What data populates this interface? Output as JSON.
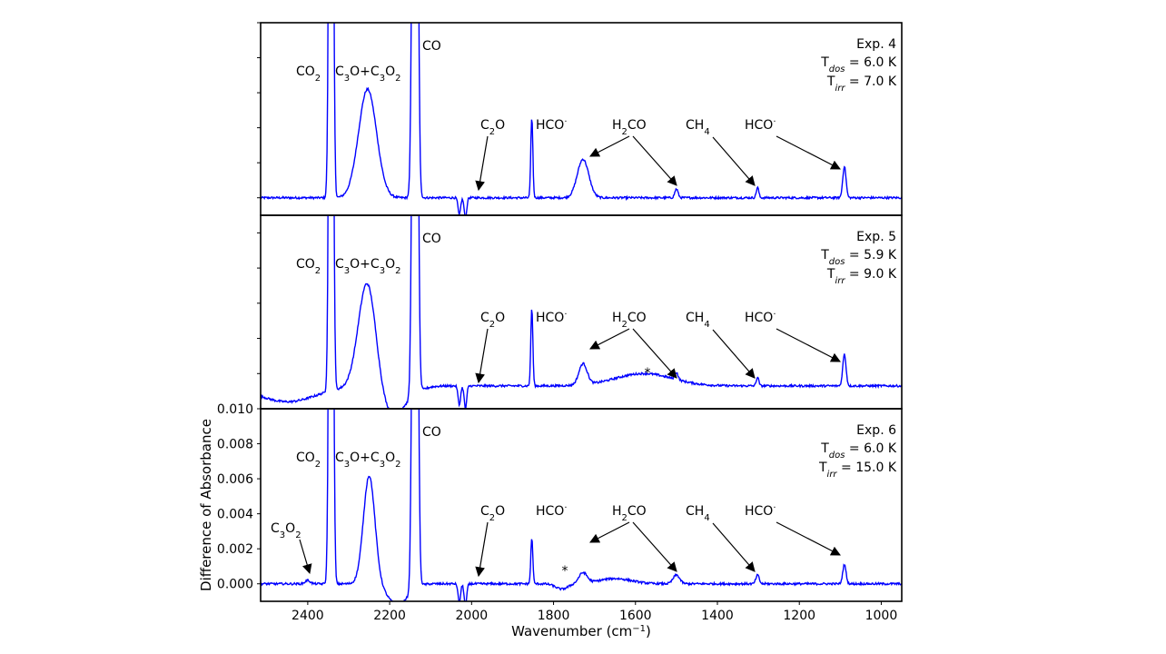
{
  "chart_data": {
    "type": "line",
    "xlabel": "Wavenumber (cm",
    "xlabel_sup": "−1",
    "xlabel_close": ")",
    "ylabel": "Difference of Absorbance",
    "xlim": [
      2515,
      950
    ],
    "x_ticks": [
      2400,
      2200,
      2000,
      1800,
      1600,
      1400,
      1200,
      1000
    ],
    "x_tick_labels": [
      "2400",
      "2200",
      "2000",
      "1800",
      "1600",
      "1400",
      "1200",
      "1000"
    ],
    "line_color": "#0000ff",
    "panels": [
      {
        "experiment": "Exp. 4",
        "tdos_value": " = 6.0 K",
        "tirr_value": "  = 7.0 K",
        "ylim": [
          -0.001,
          0.01
        ],
        "baseline": 0.0,
        "has_C3O2_label": false,
        "peaks": [
          {
            "x": 2343,
            "height": 0.06,
            "width": 4
          },
          {
            "x": 2254,
            "height": 0.0062,
            "width": 22
          },
          {
            "x": 2138,
            "height": 0.06,
            "width": 5
          },
          {
            "x": 1853,
            "height": 0.0046,
            "width": 2.5
          },
          {
            "x": 1728,
            "height": 0.0022,
            "width": 14
          },
          {
            "x": 1500,
            "height": 0.0005,
            "width": 4
          },
          {
            "x": 1302,
            "height": 0.0006,
            "width": 3
          },
          {
            "x": 1090,
            "height": 0.0018,
            "width": 4
          }
        ],
        "dips": [
          {
            "x": 2030,
            "depth": 0.001,
            "width": 3
          },
          {
            "x": 2015,
            "depth": 0.0012,
            "width": 3
          }
        ]
      },
      {
        "experiment": "Exp. 5",
        "tdos_value": " = 5.9 K",
        "tirr_value": "  = 9.0 K",
        "ylim": [
          0.0,
          0.011
        ],
        "baseline": 0.0013,
        "has_C3O2_label": false,
        "peaks": [
          {
            "x": 2343,
            "height": 0.06,
            "width": 4
          },
          {
            "x": 2254,
            "height": 0.0065,
            "width": 22
          },
          {
            "x": 2138,
            "height": 0.06,
            "width": 5
          },
          {
            "x": 1853,
            "height": 0.0044,
            "width": 2.5
          },
          {
            "x": 1728,
            "height": 0.0012,
            "width": 10
          },
          {
            "x": 1580,
            "height": 0.0007,
            "width": 70
          },
          {
            "x": 1500,
            "height": 0.0004,
            "width": 4
          },
          {
            "x": 1302,
            "height": 0.0005,
            "width": 3
          },
          {
            "x": 1090,
            "height": 0.0018,
            "width": 4
          }
        ],
        "dips": [
          {
            "x": 2450,
            "depth": 0.0009,
            "width": 70
          },
          {
            "x": 2200,
            "depth": 0.0017,
            "width": 40
          },
          {
            "x": 2030,
            "depth": 0.0011,
            "width": 3
          },
          {
            "x": 2015,
            "depth": 0.0013,
            "width": 3
          }
        ]
      },
      {
        "experiment": "Exp. 6",
        "tdos_value": " = 6.0 K",
        "tirr_value": "  = 15.0 K",
        "ylim": [
          -0.001,
          0.01
        ],
        "baseline": 0.0,
        "has_C3O2_label": true,
        "y_ticks": [
          0.0,
          0.002,
          0.004,
          0.006,
          0.008,
          0.01
        ],
        "y_tick_labels": [
          "0.000",
          "0.002",
          "0.004",
          "0.006",
          "0.008",
          "0.010"
        ],
        "peaks": [
          {
            "x": 2343,
            "height": 0.06,
            "width": 4
          },
          {
            "x": 2400,
            "height": 0.0002,
            "width": 6
          },
          {
            "x": 2250,
            "height": 0.0062,
            "width": 14
          },
          {
            "x": 2138,
            "height": 0.06,
            "width": 5
          },
          {
            "x": 1853,
            "height": 0.0026,
            "width": 2.5
          },
          {
            "x": 1728,
            "height": 0.0006,
            "width": 10
          },
          {
            "x": 1650,
            "height": 0.0003,
            "width": 40
          },
          {
            "x": 1500,
            "height": 0.0005,
            "width": 8
          },
          {
            "x": 1302,
            "height": 0.0005,
            "width": 4
          },
          {
            "x": 1090,
            "height": 0.0011,
            "width": 4
          }
        ],
        "dips": [
          {
            "x": 2180,
            "depth": 0.0012,
            "width": 25
          },
          {
            "x": 2030,
            "depth": 0.0011,
            "width": 3
          },
          {
            "x": 2015,
            "depth": 0.0013,
            "width": 3
          },
          {
            "x": 1780,
            "depth": 0.0003,
            "width": 15
          }
        ]
      }
    ],
    "labels": {
      "CO2": "CO",
      "CO2_sub": "2",
      "C3O_a": "C",
      "C3O_a_sub": "3",
      "C3O_b": "O+C",
      "C3O_b_sub": "3",
      "C3O_c": "O",
      "C3O_c_sub": "2",
      "CO": "CO",
      "C2O_a": "C",
      "C2O_sub": "2",
      "C2O_b": "O",
      "HCO": "HCO",
      "HCO_sup": "·",
      "H2CO_a": "H",
      "H2CO_sub": "2",
      "H2CO_b": "CO",
      "CH4": "CH",
      "CH4_sub": "4",
      "C3O2_a": "C",
      "C3O2_sub1": "3",
      "C3O2_b": "O",
      "C3O2_sub2": "2",
      "T": "T",
      "dos": "dos",
      "irr": "irr",
      "star": "*"
    }
  }
}
